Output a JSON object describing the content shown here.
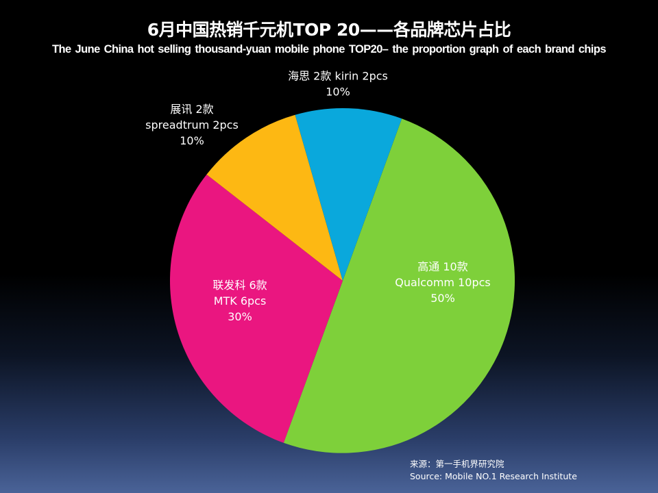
{
  "title": "6月中国热销千元机TOP 20——各品牌芯片占比",
  "subtitle": "The June China  hot  selling  thousand-yuan  mobile  phone  TOP20– the  proportion graph  of  each  brand  chips",
  "chart_data": {
    "type": "pie",
    "title": "6月中国热销千元机TOP 20——各品牌芯片占比",
    "subtitle": "The June China  hot  selling  thousand-yuan  mobile  phone  TOP20– the  proportion graph  of  each  brand  chips",
    "start_angle_deg": 20,
    "direction": "clockwise",
    "slices": [
      {
        "name": "高通",
        "value": 50,
        "lines": [
          "高通 10款",
          "Qualcomm 10pcs",
          "50%"
        ],
        "color": "#7ed03a",
        "label_color": "#ffffff"
      },
      {
        "name": "联发科",
        "value": 30,
        "lines": [
          "联发科 6款",
          "MTK 6pcs",
          "30%"
        ],
        "color": "#ea1680",
        "label_color": "#ffffff"
      },
      {
        "name": "展讯",
        "value": 10,
        "lines": [
          "展讯 2款",
          "spreadtrum 2pcs",
          "10%"
        ],
        "color": "#fdb813",
        "label_color": "#ffffff"
      },
      {
        "name": "海思",
        "value": 10,
        "lines": [
          "海思 2款 kirin 2pcs",
          "10%"
        ],
        "color": "#0aa8dc",
        "label_color": "#ffffff"
      }
    ]
  },
  "source": {
    "line1": "来源：第一手机界研究院",
    "line2": "Source: Mobile NO.1 Research Institute"
  }
}
